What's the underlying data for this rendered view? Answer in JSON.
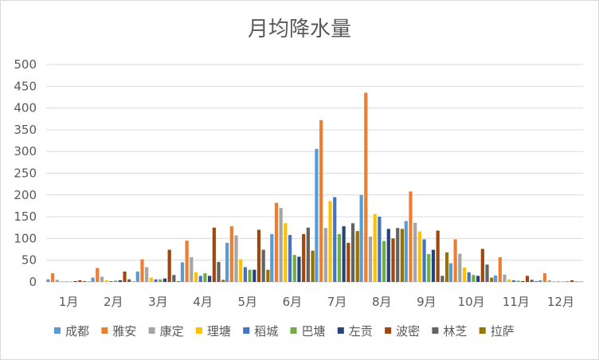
{
  "chart_data": {
    "type": "bar",
    "title": "月均降水量",
    "xlabel": "",
    "ylabel": "",
    "ylim": [
      0,
      500
    ],
    "yticks": [
      0,
      50,
      100,
      150,
      200,
      250,
      300,
      350,
      400,
      450,
      500
    ],
    "grid": true,
    "legend_position": "bottom",
    "categories": [
      "1月",
      "2月",
      "3月",
      "4月",
      "5月",
      "6月",
      "7月",
      "8月",
      "9月",
      "10月",
      "11月",
      "12月"
    ],
    "series": [
      {
        "name": "成都",
        "color": "#5B9BD5",
        "values": [
          6,
          10,
          24,
          45,
          90,
          110,
          306,
          200,
          140,
          43,
          15,
          4
        ]
      },
      {
        "name": "雅安",
        "color": "#ED7D31",
        "values": [
          20,
          32,
          52,
          95,
          128,
          182,
          372,
          435,
          208,
          98,
          57,
          20
        ]
      },
      {
        "name": "康定",
        "color": "#A5A5A5",
        "values": [
          5,
          12,
          34,
          57,
          107,
          170,
          124,
          104,
          136,
          65,
          17,
          4
        ]
      },
      {
        "name": "理塘",
        "color": "#FFC000",
        "values": [
          2,
          4,
          10,
          22,
          52,
          135,
          186,
          156,
          116,
          33,
          6,
          2
        ]
      },
      {
        "name": "稻城",
        "color": "#4472C4",
        "values": [
          1,
          2,
          6,
          14,
          34,
          108,
          195,
          150,
          98,
          22,
          4,
          1
        ]
      },
      {
        "name": "巴塘",
        "color": "#70AD47",
        "values": [
          1,
          3,
          6,
          20,
          28,
          62,
          110,
          94,
          64,
          16,
          3,
          1
        ]
      },
      {
        "name": "左贡",
        "color": "#264478",
        "values": [
          2,
          4,
          8,
          14,
          28,
          58,
          128,
          122,
          74,
          14,
          2,
          1
        ]
      },
      {
        "name": "波密",
        "color": "#9E480E",
        "values": [
          4,
          24,
          74,
          125,
          120,
          110,
          90,
          100,
          118,
          76,
          14,
          4
        ]
      },
      {
        "name": "林芝",
        "color": "#636363",
        "values": [
          2,
          6,
          16,
          46,
          74,
          125,
          135,
          124,
          14,
          40,
          5,
          1
        ]
      },
      {
        "name": "拉萨",
        "color": "#997300",
        "values": [
          1,
          1,
          2,
          5,
          28,
          72,
          117,
          122,
          68,
          10,
          2,
          1
        ]
      }
    ]
  }
}
